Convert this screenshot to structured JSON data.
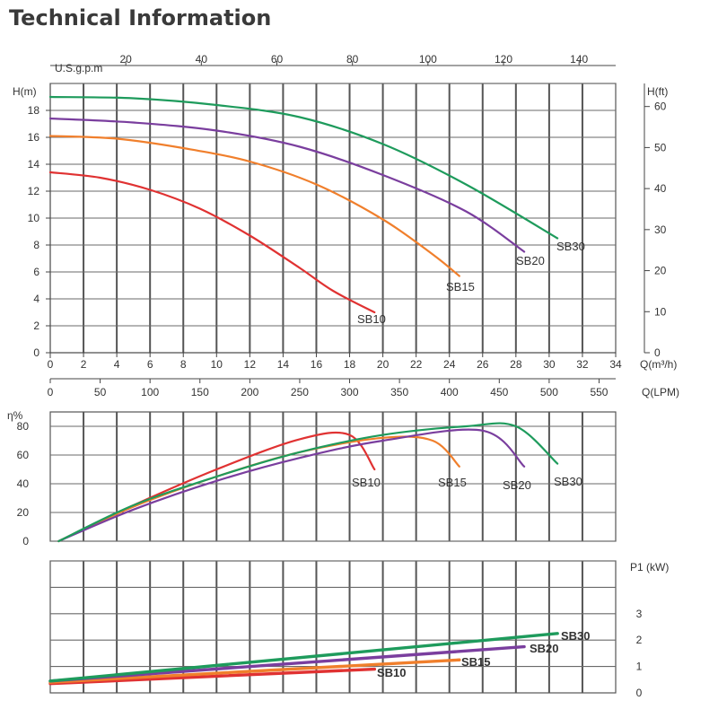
{
  "title": "Technical Information",
  "colors": {
    "SB10": "#e03232",
    "SB15": "#f07f2c",
    "SB20": "#7a3e9e",
    "SB30": "#1e9b5c",
    "grid": "#555555"
  },
  "chart_data": [
    {
      "type": "line",
      "xlim": [
        0,
        34
      ],
      "ylim": [
        0,
        20
      ],
      "ylabel": "H(m)",
      "xlabel": "Q(m³/h)",
      "x_ticks": [
        0,
        2,
        4,
        6,
        8,
        10,
        12,
        14,
        16,
        18,
        20,
        22,
        24,
        26,
        28,
        30,
        32,
        34
      ],
      "y_ticks": [
        0,
        2,
        4,
        6,
        8,
        10,
        12,
        14,
        16,
        18
      ],
      "y2_label": "H(ft)",
      "y2_ticks": [
        0,
        10,
        20,
        30,
        40,
        50,
        60
      ],
      "top_axis_label": "U.S.g.p.m",
      "top_axis_ticks": [
        20,
        40,
        60,
        80,
        100,
        120,
        140
      ],
      "bottom2_label": "Q(LPM)",
      "bottom2_ticks": [
        0,
        50,
        100,
        150,
        200,
        250,
        300,
        350,
        400,
        450,
        500,
        550
      ],
      "grid": true,
      "series": [
        {
          "name": "SB10",
          "x": [
            0,
            3,
            6,
            9,
            12,
            15,
            17,
            19.5
          ],
          "y": [
            13.4,
            13.0,
            12.1,
            10.7,
            8.7,
            6.3,
            4.6,
            3.0
          ]
        },
        {
          "name": "SB15",
          "x": [
            0,
            4,
            8,
            12,
            16,
            20,
            23,
            24.6
          ],
          "y": [
            16.1,
            15.9,
            15.2,
            14.2,
            12.5,
            9.9,
            7.3,
            5.7
          ]
        },
        {
          "name": "SB20",
          "x": [
            0,
            5,
            10,
            15,
            20,
            25,
            28.5
          ],
          "y": [
            17.4,
            17.1,
            16.5,
            15.3,
            13.2,
            10.5,
            7.5
          ]
        },
        {
          "name": "SB30",
          "x": [
            0,
            5,
            10,
            15,
            20,
            25,
            30.5
          ],
          "y": [
            19.0,
            18.9,
            18.4,
            17.5,
            15.5,
            12.5,
            8.5
          ]
        }
      ]
    },
    {
      "type": "line",
      "ylabel": "η%",
      "ylim": [
        0,
        90
      ],
      "y_ticks": [
        0,
        20,
        40,
        60,
        80
      ],
      "grid": true,
      "series": [
        {
          "name": "SB10",
          "x": [
            0.5,
            5,
            10,
            15,
            18,
            19.5
          ],
          "y": [
            0,
            25,
            50,
            71,
            74,
            50
          ]
        },
        {
          "name": "SB15",
          "x": [
            0.5,
            5,
            10,
            15,
            20,
            23,
            24.6
          ],
          "y": [
            0,
            24,
            45,
            62,
            72,
            70,
            52
          ]
        },
        {
          "name": "SB20",
          "x": [
            0.5,
            5,
            10,
            15,
            20,
            26,
            28.5
          ],
          "y": [
            0,
            22,
            42,
            58,
            70,
            77,
            52
          ]
        },
        {
          "name": "SB30",
          "x": [
            0.5,
            5,
            10,
            15,
            20,
            25,
            28,
            30.5
          ],
          "y": [
            0,
            25,
            45,
            62,
            74,
            80,
            80,
            54
          ]
        }
      ]
    },
    {
      "type": "line",
      "ylabel": "P1 (kW)",
      "ylim": [
        0,
        5
      ],
      "y_ticks": [
        0,
        1,
        2,
        3
      ],
      "grid": true,
      "series": [
        {
          "name": "SB10",
          "x": [
            0,
            19.5
          ],
          "y": [
            0.35,
            0.9
          ]
        },
        {
          "name": "SB15",
          "x": [
            0,
            24.6
          ],
          "y": [
            0.4,
            1.25
          ]
        },
        {
          "name": "SB20",
          "x": [
            0,
            28.5
          ],
          "y": [
            0.45,
            1.75
          ]
        },
        {
          "name": "SB30",
          "x": [
            0,
            30.5
          ],
          "y": [
            0.45,
            2.25
          ]
        }
      ]
    }
  ]
}
